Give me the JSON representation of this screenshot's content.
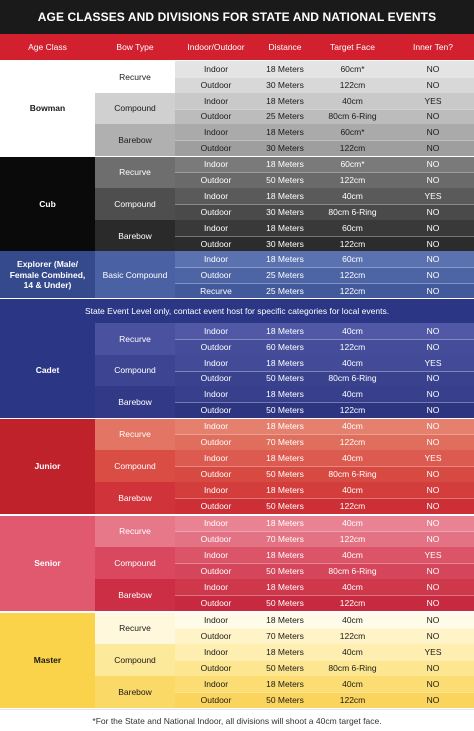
{
  "title": "AGE CLASSES AND DIVISIONS FOR STATE AND NATIONAL EVENTS",
  "columns": [
    "Age Class",
    "Bow Type",
    "Indoor/Outdoor",
    "Distance",
    "Target Face",
    "Inner Ten?"
  ],
  "state_note": "State Event Level only, contact event host for specific categories for local events.",
  "footnote": "*For the State and National Indoor, all divisions will shoot a 40cm target face.",
  "groups": [
    {
      "age_class": "Bowman",
      "label_bg": "#ffffff",
      "label_color": "#1a1a1a",
      "text_color": "#1a1a1a",
      "bow_types": [
        {
          "name": "Recurve",
          "bg": "#ffffff",
          "rows": [
            {
              "io": "Indoor",
              "distance": "18 Meters",
              "face": "60cm*",
              "ten": "NO",
              "bg": "#e4e4e4"
            },
            {
              "io": "Outdoor",
              "distance": "30 Meters",
              "face": "122cm",
              "ten": "NO",
              "bg": "#d8d8d8"
            }
          ]
        },
        {
          "name": "Compound",
          "bg": "#d0d0d0",
          "rows": [
            {
              "io": "Indoor",
              "distance": "18 Meters",
              "face": "40cm",
              "ten": "YES",
              "bg": "#c9c9c9"
            },
            {
              "io": "Outdoor",
              "distance": "25 Meters",
              "face": "80cm 6-Ring",
              "ten": "NO",
              "bg": "#bcbcbc"
            }
          ]
        },
        {
          "name": "Barebow",
          "bg": "#b0b0b0",
          "rows": [
            {
              "io": "Indoor",
              "distance": "18 Meters",
              "face": "60cm*",
              "ten": "NO",
              "bg": "#aaaaaa"
            },
            {
              "io": "Outdoor",
              "distance": "30 Meters",
              "face": "122cm",
              "ten": "NO",
              "bg": "#9e9e9e"
            }
          ]
        }
      ]
    },
    {
      "age_class": "Cub",
      "label_bg": "#0a0a0a",
      "label_color": "#ffffff",
      "text_color": "#ffffff",
      "bow_types": [
        {
          "name": "Recurve",
          "bg": "#6e6e6e",
          "rows": [
            {
              "io": "Indoor",
              "distance": "18 Meters",
              "face": "60cm*",
              "ten": "NO",
              "bg": "#7a7a7a"
            },
            {
              "io": "Outdoor",
              "distance": "50 Meters",
              "face": "122cm",
              "ten": "NO",
              "bg": "#6a6a6a"
            }
          ]
        },
        {
          "name": "Compound",
          "bg": "#4e4e4e",
          "rows": [
            {
              "io": "Indoor",
              "distance": "18 Meters",
              "face": "40cm",
              "ten": "YES",
              "bg": "#5a5a5a"
            },
            {
              "io": "Outdoor",
              "distance": "30 Meters",
              "face": "80cm 6-Ring",
              "ten": "NO",
              "bg": "#4a4a4a"
            }
          ]
        },
        {
          "name": "Barebow",
          "bg": "#2a2a2a",
          "rows": [
            {
              "io": "Indoor",
              "distance": "18 Meters",
              "face": "60cm",
              "ten": "NO",
              "bg": "#393939"
            },
            {
              "io": "Outdoor",
              "distance": "30 Meters",
              "face": "122cm",
              "ten": "NO",
              "bg": "#2c2c2c"
            }
          ]
        }
      ]
    },
    {
      "age_class": "Explorer (Male/ Female Combined, 14 & Under)",
      "label_bg": "#344a8c",
      "label_color": "#ffffff",
      "text_color": "#ffffff",
      "bow_types": [
        {
          "name": "Basic Compound",
          "bg": "#4a62a4",
          "rows": [
            {
              "io": "Indoor",
              "distance": "18 Meters",
              "face": "60cm",
              "ten": "NO",
              "bg": "#5b72b1"
            },
            {
              "io": "Outdoor",
              "distance": "25 Meters",
              "face": "122cm",
              "ten": "NO",
              "bg": "#4d64a5"
            },
            {
              "io": "Recurve",
              "distance": "25 Meters",
              "face": "122cm",
              "ten": "NO",
              "bg": "#42599b"
            }
          ]
        }
      ]
    },
    {
      "age_class": "Cadet",
      "label_bg": "#2b3785",
      "label_color": "#ffffff",
      "text_color": "#ffffff",
      "bow_types": [
        {
          "name": "Recurve",
          "bg": "#4a52a0",
          "rows": [
            {
              "io": "Indoor",
              "distance": "18 Meters",
              "face": "40cm",
              "ten": "NO",
              "bg": "#5159a6"
            },
            {
              "io": "Outdoor",
              "distance": "60 Meters",
              "face": "122cm",
              "ten": "NO",
              "bg": "#454d9a"
            }
          ]
        },
        {
          "name": "Compound",
          "bg": "#3d4593",
          "rows": [
            {
              "io": "Indoor",
              "distance": "18 Meters",
              "face": "40cm",
              "ten": "YES",
              "bg": "#434b99"
            },
            {
              "io": "Outdoor",
              "distance": "50 Meters",
              "face": "80cm 6-Ring",
              "ten": "NO",
              "bg": "#3a428e"
            }
          ]
        },
        {
          "name": "Barebow",
          "bg": "#323a88",
          "rows": [
            {
              "io": "Indoor",
              "distance": "18 Meters",
              "face": "40cm",
              "ten": "NO",
              "bg": "#383f8c"
            },
            {
              "io": "Outdoor",
              "distance": "50 Meters",
              "face": "122cm",
              "ten": "NO",
              "bg": "#2e3580"
            }
          ]
        }
      ]
    },
    {
      "age_class": "Junior",
      "label_bg": "#c0222c",
      "label_color": "#ffffff",
      "text_color": "#ffffff",
      "bow_types": [
        {
          "name": "Recurve",
          "bg": "#e27564",
          "rows": [
            {
              "io": "Indoor",
              "distance": "18 Meters",
              "face": "40cm",
              "ten": "NO",
              "bg": "#e5806e"
            },
            {
              "io": "Outdoor",
              "distance": "70 Meters",
              "face": "122cm",
              "ten": "NO",
              "bg": "#e06e5d"
            }
          ]
        },
        {
          "name": "Compound",
          "bg": "#d94d45",
          "rows": [
            {
              "io": "Indoor",
              "distance": "18 Meters",
              "face": "40cm",
              "ten": "YES",
              "bg": "#dc5a4f"
            },
            {
              "io": "Outdoor",
              "distance": "50 Meters",
              "face": "80cm 6-Ring",
              "ten": "NO",
              "bg": "#d64a41"
            }
          ]
        },
        {
          "name": "Barebow",
          "bg": "#d1333a",
          "rows": [
            {
              "io": "Indoor",
              "distance": "18 Meters",
              "face": "40cm",
              "ten": "NO",
              "bg": "#d33d3c"
            },
            {
              "io": "Outdoor",
              "distance": "50 Meters",
              "face": "122cm",
              "ten": "NO",
              "bg": "#cc2f36"
            }
          ]
        }
      ]
    },
    {
      "age_class": "Senior",
      "label_bg": "#e1596f",
      "label_color": "#ffffff",
      "text_color": "#ffffff",
      "bow_types": [
        {
          "name": "Recurve",
          "bg": "#e7788a",
          "rows": [
            {
              "io": "Indoor",
              "distance": "18 Meters",
              "face": "40cm",
              "ten": "NO",
              "bg": "#e98393"
            },
            {
              "io": "Outdoor",
              "distance": "70 Meters",
              "face": "122cm",
              "ten": "NO",
              "bg": "#e47285"
            }
          ]
        },
        {
          "name": "Compound",
          "bg": "#d9485f",
          "rows": [
            {
              "io": "Indoor",
              "distance": "18 Meters",
              "face": "40cm",
              "ten": "YES",
              "bg": "#dc5468"
            },
            {
              "io": "Outdoor",
              "distance": "50 Meters",
              "face": "80cm 6-Ring",
              "ten": "NO",
              "bg": "#d5455b"
            }
          ]
        },
        {
          "name": "Barebow",
          "bg": "#cc2e45",
          "rows": [
            {
              "io": "Indoor",
              "distance": "18 Meters",
              "face": "40cm",
              "ten": "NO",
              "bg": "#cf374b"
            },
            {
              "io": "Outdoor",
              "distance": "50 Meters",
              "face": "122cm",
              "ten": "NO",
              "bg": "#c72a40"
            }
          ]
        }
      ]
    },
    {
      "age_class": "Master",
      "label_bg": "#fbd34a",
      "label_color": "#1a1a1a",
      "text_color": "#1a1a1a",
      "bow_types": [
        {
          "name": "Recurve",
          "bg": "#fff8dc",
          "rows": [
            {
              "io": "Indoor",
              "distance": "18 Meters",
              "face": "40cm",
              "ten": "NO",
              "bg": "#fffbe8"
            },
            {
              "io": "Outdoor",
              "distance": "70 Meters",
              "face": "122cm",
              "ten": "NO",
              "bg": "#fff4c8"
            }
          ]
        },
        {
          "name": "Compound",
          "bg": "#fde99a",
          "rows": [
            {
              "io": "Indoor",
              "distance": "18 Meters",
              "face": "40cm",
              "ten": "YES",
              "bg": "#feeeb0"
            },
            {
              "io": "Outdoor",
              "distance": "50 Meters",
              "face": "80cm 6-Ring",
              "ten": "NO",
              "bg": "#fce690"
            }
          ]
        },
        {
          "name": "Barebow",
          "bg": "#fbd967",
          "rows": [
            {
              "io": "Indoor",
              "distance": "18 Meters",
              "face": "40cm",
              "ten": "NO",
              "bg": "#fcdd73"
            },
            {
              "io": "Outdoor",
              "distance": "50 Meters",
              "face": "122cm",
              "ten": "NO",
              "bg": "#fad45c"
            }
          ]
        }
      ]
    }
  ]
}
